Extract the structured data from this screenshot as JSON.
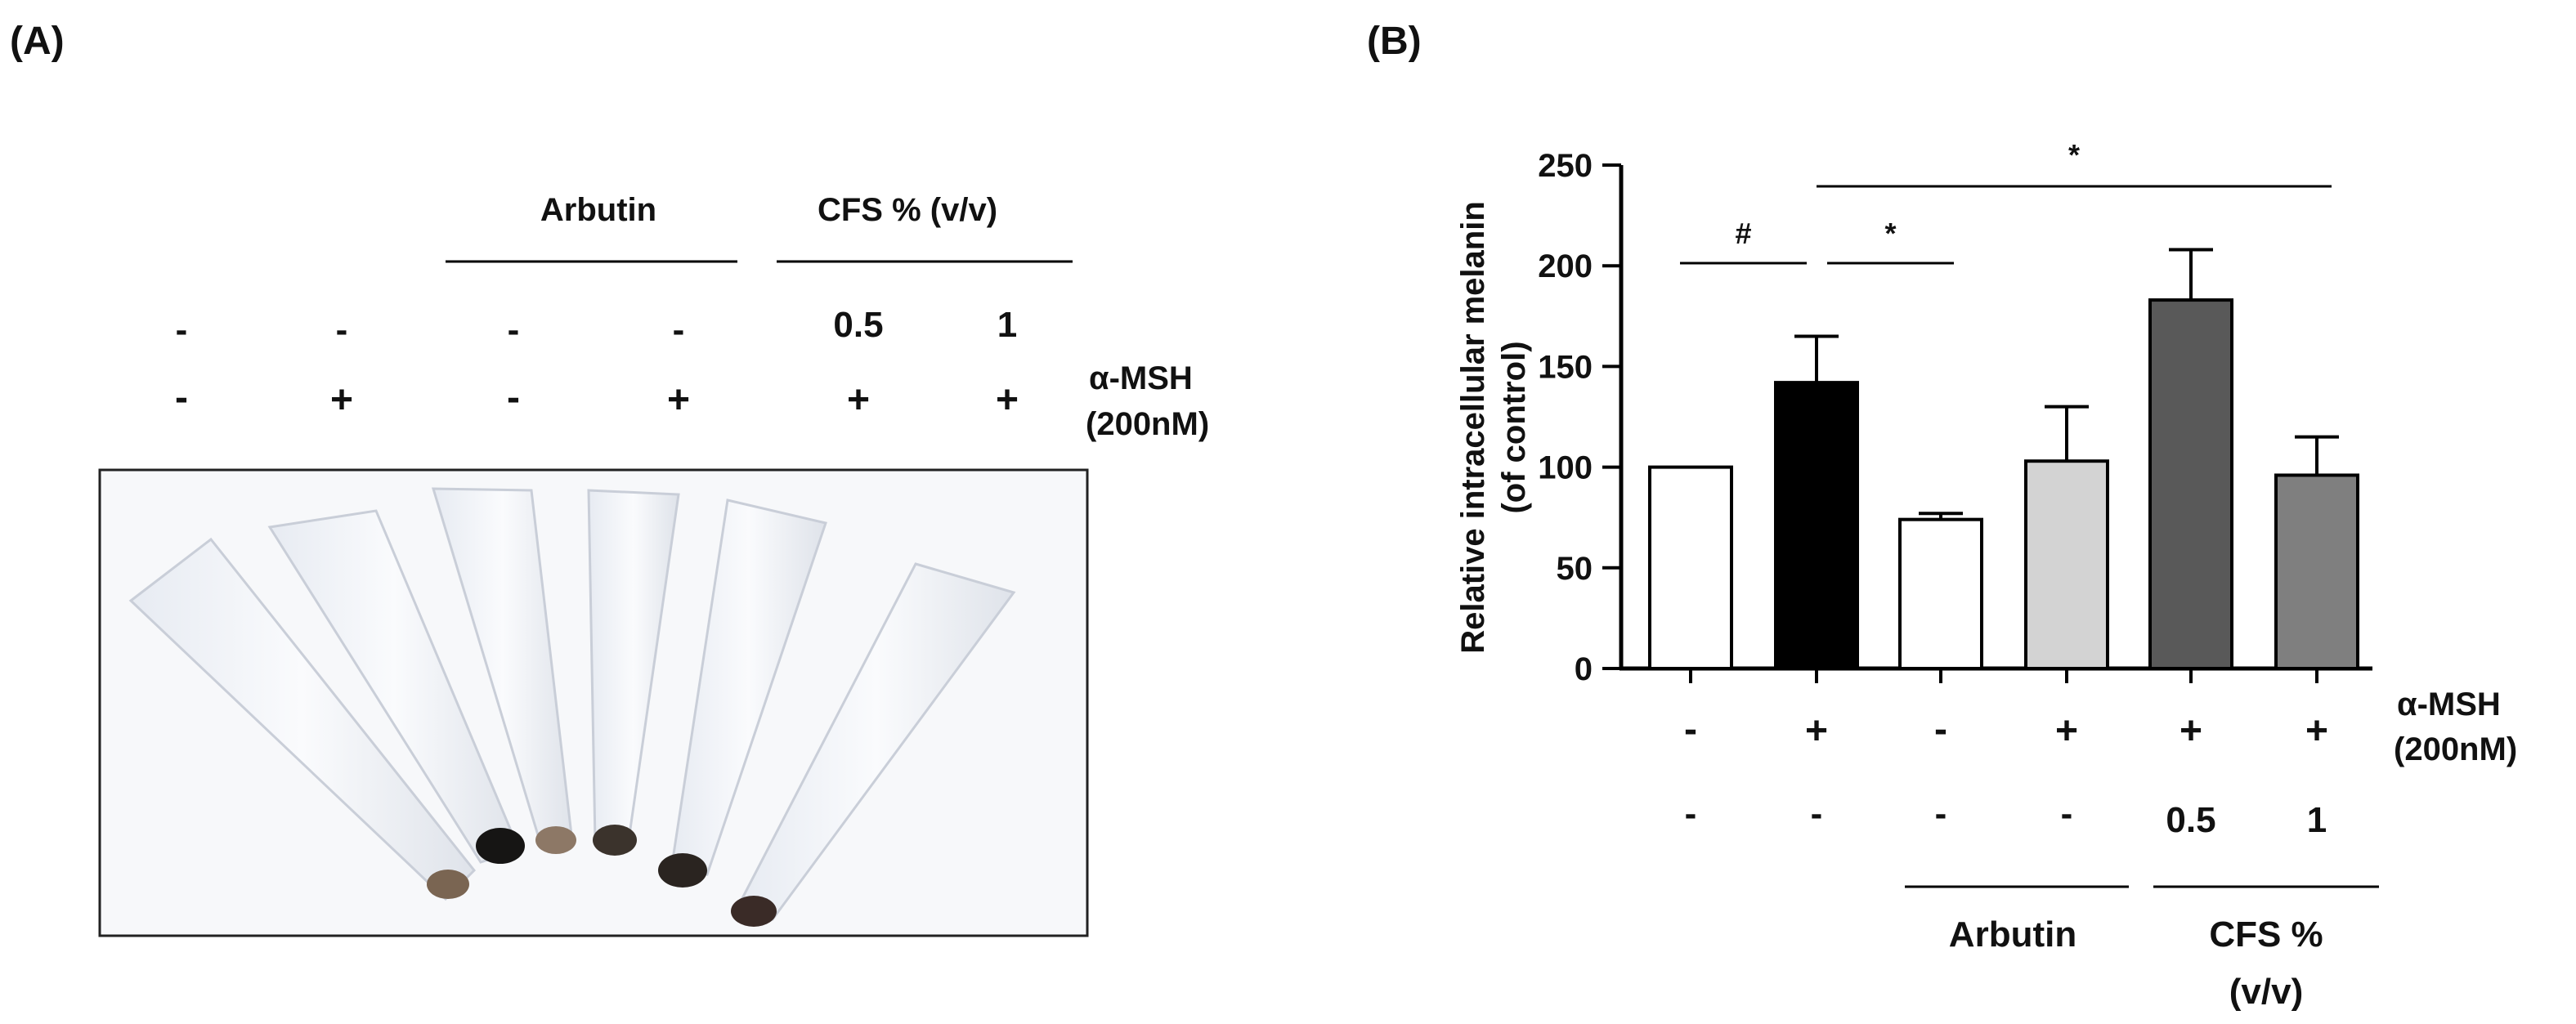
{
  "panel_a": {
    "label": "(A)",
    "group_labels": [
      "Arbutin",
      "CFS % (v/v)"
    ],
    "cfs_row": [
      "-",
      "-",
      "-",
      "-",
      "0.5",
      "1"
    ],
    "msh_row": [
      "-",
      "+",
      "-",
      "+",
      "+",
      "+"
    ],
    "msh_label": "α-MSH",
    "msh_conc": "(200nM)"
  },
  "panel_b": {
    "label": "(B)",
    "msh_row": [
      "-",
      "+",
      "-",
      "+",
      "+",
      "+"
    ],
    "cfs_row": [
      "-",
      "-",
      "-",
      "-",
      "0.5",
      "1"
    ],
    "msh_label": "α-MSH",
    "msh_conc": "(200nM)",
    "group_arbutin": "Arbutin",
    "group_cfs_line1": "CFS %",
    "group_cfs_line2": "(v/v)",
    "sig_marks": [
      "#",
      "*",
      "*"
    ]
  },
  "colors": {
    "bars": [
      "#ffffff",
      "#000000",
      "#ffffff",
      "#d3d3d3",
      "#595959",
      "#7f7f7f"
    ],
    "axis": "#000000"
  },
  "chart_data": {
    "type": "bar",
    "title": "",
    "xlabel": "",
    "ylabel": "Relative intracellular melanin (of control)",
    "ylabel_line1": "Relative intracellular melanin",
    "ylabel_line2": "(of control)",
    "ylim": [
      0,
      250
    ],
    "yticks": [
      "0",
      "50",
      "100",
      "150",
      "200",
      "250"
    ],
    "values": [
      100,
      142,
      74,
      103,
      183,
      96
    ],
    "errors": [
      0,
      23,
      3,
      27,
      25,
      19
    ],
    "significance": [
      {
        "from": 0,
        "to": 1,
        "symbol": "#"
      },
      {
        "from": 1,
        "to": 2,
        "symbol": "*"
      },
      {
        "from": 1,
        "to": 5,
        "symbol": "*"
      }
    ]
  }
}
